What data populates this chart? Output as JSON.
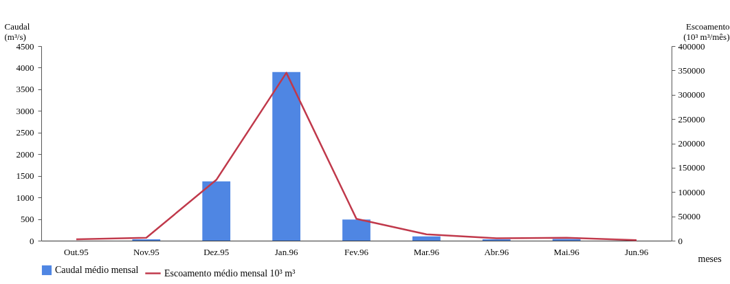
{
  "chart_data": {
    "type": "bar",
    "categories": [
      "Out.95",
      "Nov.95",
      "Dez.95",
      "Jan.96",
      "Fev.96",
      "Mar.96",
      "Abr.96",
      "Mai.96",
      "Jun.96"
    ],
    "xlabel": "meses",
    "ylabel": "Caudal (m³/s)",
    "y2label": "Escoamento (10³ m³/mês)",
    "ylim": [
      0,
      4500
    ],
    "yticks": [
      0,
      500,
      1000,
      1500,
      2000,
      2500,
      3000,
      3500,
      4000,
      4500
    ],
    "y2lim": [
      0,
      400000
    ],
    "y2ticks": [
      0,
      50000,
      100000,
      150000,
      200000,
      250000,
      300000,
      350000,
      400000
    ],
    "legend": "bottom",
    "marker": "none",
    "line_style": "solid",
    "series": [
      {
        "name": "Caudal médio mensal",
        "color": "#4f86e3",
        "values": [
          0,
          30,
          1370,
          3900,
          490,
          100,
          30,
          40,
          0
        ]
      },
      {
        "name": "Escoamento médio mensal 10³ m³",
        "type": "line",
        "axis": "y2",
        "color": "#c0394b",
        "values": [
          3000,
          6000,
          125000,
          345000,
          45000,
          13000,
          5000,
          6000,
          1000
        ]
      }
    ]
  }
}
